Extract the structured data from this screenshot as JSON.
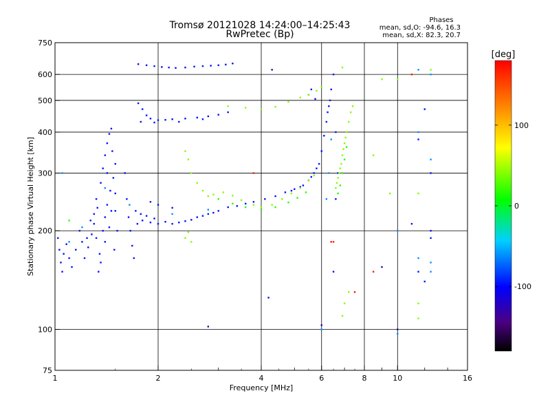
{
  "chart_data": {
    "type": "scatter",
    "title": "Tromsø 20121028 14:24:00–14:25:43",
    "subtitle": "RwPretec (Bp)",
    "xlabel": "Frequency [MHz]",
    "ylabel": "Stationary phase Virtual Height [km]",
    "x_scale": "log",
    "y_scale": "log",
    "xlim": [
      1,
      16
    ],
    "ylim": [
      75,
      750
    ],
    "x_ticks": [
      1,
      2,
      4,
      6,
      8,
      10,
      16
    ],
    "x_tick_labels": [
      "1",
      "2",
      "4",
      "6",
      "8",
      "10",
      "16"
    ],
    "y_ticks": [
      75,
      100,
      200,
      300,
      400,
      500,
      600,
      750
    ],
    "y_tick_labels": [
      "75",
      "100",
      "200",
      "300",
      "400",
      "500",
      "600",
      "750"
    ],
    "grid": true,
    "phases_header": "Phases",
    "phases_stats": [
      "mean, sd,O: -94.6, 16.3",
      "mean, sd,X:  82.3, 20.7"
    ],
    "colorbar": {
      "label": "[deg]",
      "range": [
        -180,
        180
      ],
      "ticks": [
        100,
        0,
        -100
      ],
      "tick_labels": [
        "100",
        "0",
        "-100"
      ]
    },
    "series": [
      {
        "phase": -95,
        "points": [
          [
            1.02,
            190
          ],
          [
            1.03,
            175
          ],
          [
            1.04,
            160
          ],
          [
            1.05,
            150
          ],
          [
            1.06,
            170
          ],
          [
            1.08,
            182
          ],
          [
            1.1,
            165
          ],
          [
            1.12,
            155
          ],
          [
            1.15,
            175
          ],
          [
            1.18,
            200
          ],
          [
            1.2,
            185
          ],
          [
            1.22,
            165
          ],
          [
            1.25,
            178
          ],
          [
            1.28,
            195
          ],
          [
            1.3,
            210
          ],
          [
            1.32,
            190
          ],
          [
            1.35,
            170
          ],
          [
            1.38,
            200
          ],
          [
            1.4,
            220
          ],
          [
            1.42,
            240
          ],
          [
            1.45,
            265
          ],
          [
            1.48,
            290
          ],
          [
            1.5,
            320
          ],
          [
            1.5,
            260
          ],
          [
            1.46,
            230
          ],
          [
            1.44,
            205
          ],
          [
            1.4,
            185
          ],
          [
            1.36,
            160
          ],
          [
            1.34,
            150
          ],
          [
            1.3,
            225
          ],
          [
            1.32,
            250
          ],
          [
            1.36,
            280
          ],
          [
            1.38,
            310
          ],
          [
            1.4,
            340
          ],
          [
            1.42,
            370
          ],
          [
            1.44,
            395
          ],
          [
            1.47,
            350
          ],
          [
            1.5,
            230
          ],
          [
            1.52,
            200
          ],
          [
            1.49,
            175
          ],
          [
            1.33,
            235
          ],
          [
            1.27,
            215
          ],
          [
            1.24,
            190
          ],
          [
            1.42,
            300
          ],
          [
            1.46,
            410
          ],
          [
            1.6,
            300
          ],
          [
            1.62,
            250
          ],
          [
            1.64,
            220
          ],
          [
            1.66,
            200
          ],
          [
            1.68,
            180
          ],
          [
            1.7,
            165
          ],
          [
            1.72,
            230
          ],
          [
            1.74,
            210
          ],
          [
            1.78,
            225
          ],
          [
            1.8,
            215
          ],
          [
            1.85,
            222
          ],
          [
            1.9,
            212
          ],
          [
            1.95,
            218
          ],
          [
            2.0,
            210
          ],
          [
            2.1,
            213
          ],
          [
            2.2,
            210
          ],
          [
            2.3,
            212
          ],
          [
            2.4,
            214
          ],
          [
            2.5,
            216
          ],
          [
            2.6,
            220
          ],
          [
            2.7,
            222
          ],
          [
            2.8,
            225
          ],
          [
            2.9,
            227
          ],
          [
            3.0,
            230
          ],
          [
            3.2,
            236
          ],
          [
            3.4,
            238
          ],
          [
            3.6,
            242
          ],
          [
            3.8,
            245
          ],
          [
            2.0,
            240
          ],
          [
            2.2,
            235
          ],
          [
            1.9,
            245
          ],
          [
            1.75,
            490
          ],
          [
            1.8,
            470
          ],
          [
            1.85,
            450
          ],
          [
            1.9,
            440
          ],
          [
            2.0,
            435
          ],
          [
            2.1,
            436
          ],
          [
            2.2,
            438
          ],
          [
            2.4,
            440
          ],
          [
            2.6,
            443
          ],
          [
            2.8,
            447
          ],
          [
            3.0,
            452
          ],
          [
            3.2,
            460
          ],
          [
            1.78,
            430
          ],
          [
            1.95,
            428
          ],
          [
            2.3,
            430
          ],
          [
            2.7,
            438
          ],
          [
            1.75,
            645
          ],
          [
            1.85,
            640
          ],
          [
            1.95,
            636
          ],
          [
            2.05,
            632
          ],
          [
            2.15,
            630
          ],
          [
            2.25,
            628
          ],
          [
            2.4,
            630
          ],
          [
            2.55,
            634
          ],
          [
            2.7,
            636
          ],
          [
            2.85,
            638
          ],
          [
            3.0,
            640
          ],
          [
            3.15,
            643
          ],
          [
            3.3,
            648
          ],
          [
            4.1,
            250
          ],
          [
            4.4,
            255
          ],
          [
            4.7,
            262
          ],
          [
            5.0,
            268
          ],
          [
            5.3,
            275
          ],
          [
            5.5,
            285
          ],
          [
            5.7,
            300
          ],
          [
            5.9,
            320
          ],
          [
            6.0,
            350
          ],
          [
            6.1,
            390
          ],
          [
            6.2,
            430
          ],
          [
            6.3,
            480
          ],
          [
            6.4,
            540
          ],
          [
            6.5,
            600
          ],
          [
            6.35,
            500
          ],
          [
            6.25,
            460
          ],
          [
            5.8,
            310
          ],
          [
            5.6,
            292
          ],
          [
            5.2,
            272
          ],
          [
            4.9,
            265
          ],
          [
            5.5,
            520
          ],
          [
            5.6,
            540
          ],
          [
            5.75,
            505
          ],
          [
            6.6,
            250
          ],
          [
            6.7,
            300
          ],
          [
            6.6,
            400
          ],
          [
            6.5,
            150
          ],
          [
            12,
            470
          ],
          [
            12.5,
            200
          ],
          [
            12.5,
            190
          ],
          [
            11.5,
            380
          ],
          [
            11.5,
            150
          ],
          [
            12,
            140
          ],
          [
            11,
            210
          ],
          [
            12.5,
            300
          ],
          [
            4.2,
            125
          ]
        ]
      },
      {
        "phase": 40,
        "points": [
          [
            2.4,
            350
          ],
          [
            2.45,
            330
          ],
          [
            2.5,
            300
          ],
          [
            2.6,
            280
          ],
          [
            2.7,
            265
          ],
          [
            2.8,
            255
          ],
          [
            2.9,
            258
          ],
          [
            3.1,
            262
          ],
          [
            3.3,
            256
          ],
          [
            3.5,
            248
          ],
          [
            3.8,
            240
          ],
          [
            4.0,
            236
          ],
          [
            4.3,
            240
          ],
          [
            4.6,
            250
          ],
          [
            4.9,
            260
          ],
          [
            5.2,
            270
          ],
          [
            5.5,
            285
          ],
          [
            5.7,
            295
          ],
          [
            6.6,
            270
          ],
          [
            6.7,
            290
          ],
          [
            6.8,
            310
          ],
          [
            6.9,
            340
          ],
          [
            7.0,
            370
          ],
          [
            7.1,
            400
          ],
          [
            7.2,
            430
          ],
          [
            6.85,
            320
          ],
          [
            6.95,
            355
          ],
          [
            7.05,
            385
          ],
          [
            7.3,
            460
          ],
          [
            7.4,
            480
          ],
          [
            6.75,
            300
          ],
          [
            6.65,
            280
          ],
          [
            3.2,
            480
          ],
          [
            3.6,
            475
          ],
          [
            4.0,
            470
          ],
          [
            4.4,
            478
          ],
          [
            4.8,
            495
          ],
          [
            5.2,
            510
          ],
          [
            5.5,
            520
          ],
          [
            5.8,
            535
          ],
          [
            6.0,
            550
          ],
          [
            2.4,
            190
          ],
          [
            2.45,
            198
          ],
          [
            2.5,
            185
          ],
          [
            9.0,
            580
          ],
          [
            10.0,
            580
          ],
          [
            11.5,
            260
          ],
          [
            12.5,
            620
          ],
          [
            11.0,
            600
          ],
          [
            6.9,
            630
          ],
          [
            7.0,
            120
          ],
          [
            6.9,
            110
          ],
          [
            7.2,
            130
          ],
          [
            8.5,
            340
          ],
          [
            9.5,
            260
          ],
          [
            11.5,
            108
          ],
          [
            11.5,
            120
          ]
        ]
      },
      {
        "phase": 15,
        "points": [
          [
            3.0,
            250
          ],
          [
            3.3,
            242
          ],
          [
            3.6,
            236
          ],
          [
            4.0,
            232
          ],
          [
            4.4,
            236
          ],
          [
            4.8,
            244
          ],
          [
            5.1,
            252
          ],
          [
            5.4,
            262
          ],
          [
            6.7,
            260
          ],
          [
            6.8,
            275
          ],
          [
            6.9,
            300
          ],
          [
            7.0,
            330
          ],
          [
            7.1,
            360
          ],
          [
            1.1,
            215
          ]
        ]
      },
      {
        "phase": -60,
        "points": [
          [
            1.05,
            300
          ],
          [
            1.1,
            185
          ],
          [
            1.2,
            205
          ],
          [
            1.4,
            270
          ],
          [
            1.65,
            240
          ],
          [
            2.2,
            225
          ],
          [
            2.8,
            232
          ],
          [
            6.2,
            250
          ],
          [
            6.3,
            300
          ],
          [
            6.4,
            380
          ],
          [
            12.5,
            330
          ],
          [
            11.5,
            400
          ],
          [
            11.5,
            620
          ],
          [
            12.5,
            600
          ],
          [
            12.5,
            160
          ],
          [
            12.5,
            150
          ],
          [
            11.5,
            165
          ],
          [
            10,
            200
          ],
          [
            6.0,
            100
          ],
          [
            10.0,
            97
          ]
        ]
      },
      {
        "phase": 170,
        "points": [
          [
            3.8,
            300
          ],
          [
            6.5,
            185
          ],
          [
            7.5,
            130
          ],
          [
            8.5,
            150
          ],
          [
            6.4,
            185
          ],
          [
            11.0,
            600
          ]
        ]
      },
      {
        "phase": -130,
        "points": [
          [
            2.8,
            102
          ],
          [
            6.0,
            103
          ],
          [
            10.0,
            100
          ],
          [
            4.3,
            620
          ],
          [
            9.0,
            155
          ]
        ]
      }
    ]
  }
}
